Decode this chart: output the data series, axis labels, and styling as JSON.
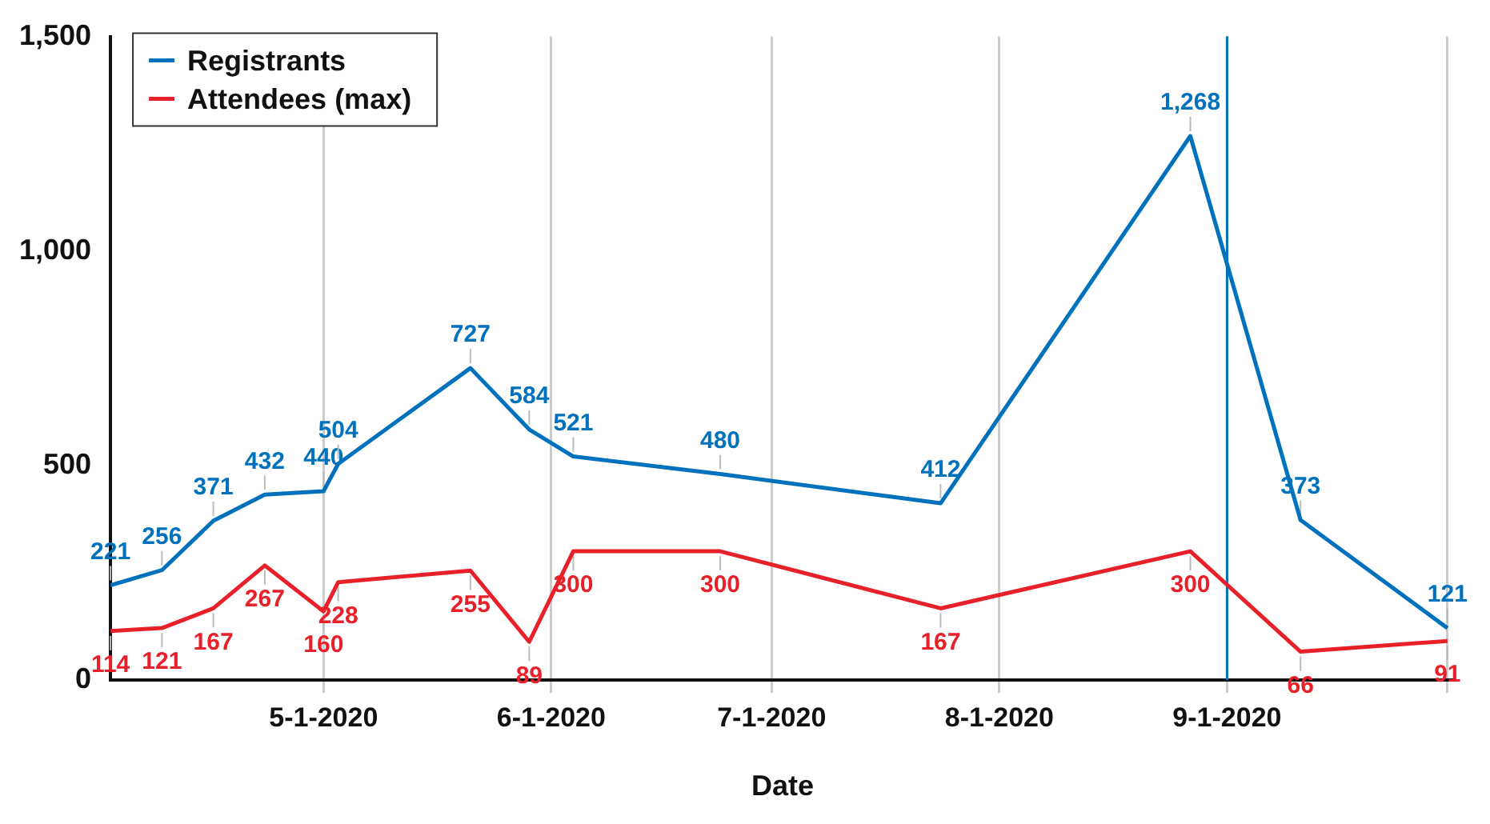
{
  "chart_data": {
    "type": "line",
    "xlabel": "Date",
    "x": [
      "2020-04-02",
      "2020-04-09",
      "2020-04-16",
      "2020-04-23",
      "2020-05-01",
      "2020-05-03",
      "2020-05-21",
      "2020-05-29",
      "2020-06-04",
      "2020-06-24",
      "2020-07-24",
      "2020-08-27",
      "2020-09-11",
      "2020-10-01"
    ],
    "series": [
      {
        "name": "Registrants",
        "color": "#0071bc",
        "values": [
          221,
          256,
          371,
          432,
          440,
          504,
          727,
          584,
          521,
          480,
          412,
          1268,
          373,
          121
        ],
        "value_labels": [
          "221",
          "256",
          "371",
          "432",
          "440",
          "504",
          "727",
          "584",
          "521",
          "480",
          "412",
          "1,268",
          "373",
          "121"
        ]
      },
      {
        "name": "Attendees (max)",
        "color": "#e8202a",
        "values": [
          114,
          121,
          167,
          267,
          160,
          228,
          255,
          89,
          300,
          300,
          167,
          300,
          66,
          91
        ]
      }
    ],
    "xlim": [
      "2020-04-02",
      "2020-10-02"
    ],
    "xticks": [
      {
        "value": "2020-05-01",
        "label": "5-1-2020"
      },
      {
        "value": "2020-06-01",
        "label": "6-1-2020"
      },
      {
        "value": "2020-07-01",
        "label": "7-1-2020"
      },
      {
        "value": "2020-08-01",
        "label": "8-1-2020"
      },
      {
        "value": "2020-09-01",
        "label": "9-1-2020"
      },
      {
        "value": "2020-10-01",
        "label": null
      }
    ],
    "ylim": [
      0,
      1500
    ],
    "yticks": [
      0,
      500,
      {
        "value": 1000,
        "label": "1,000"
      },
      {
        "value": 1500,
        "label": "1,500"
      }
    ],
    "ref_lines": [
      {
        "axis": "x",
        "value": "2020-09-01",
        "color": "#0071bc"
      }
    ],
    "grid": "x",
    "legend": "top left",
    "data_labels": true,
    "marker": "none",
    "line_style": "solid"
  }
}
